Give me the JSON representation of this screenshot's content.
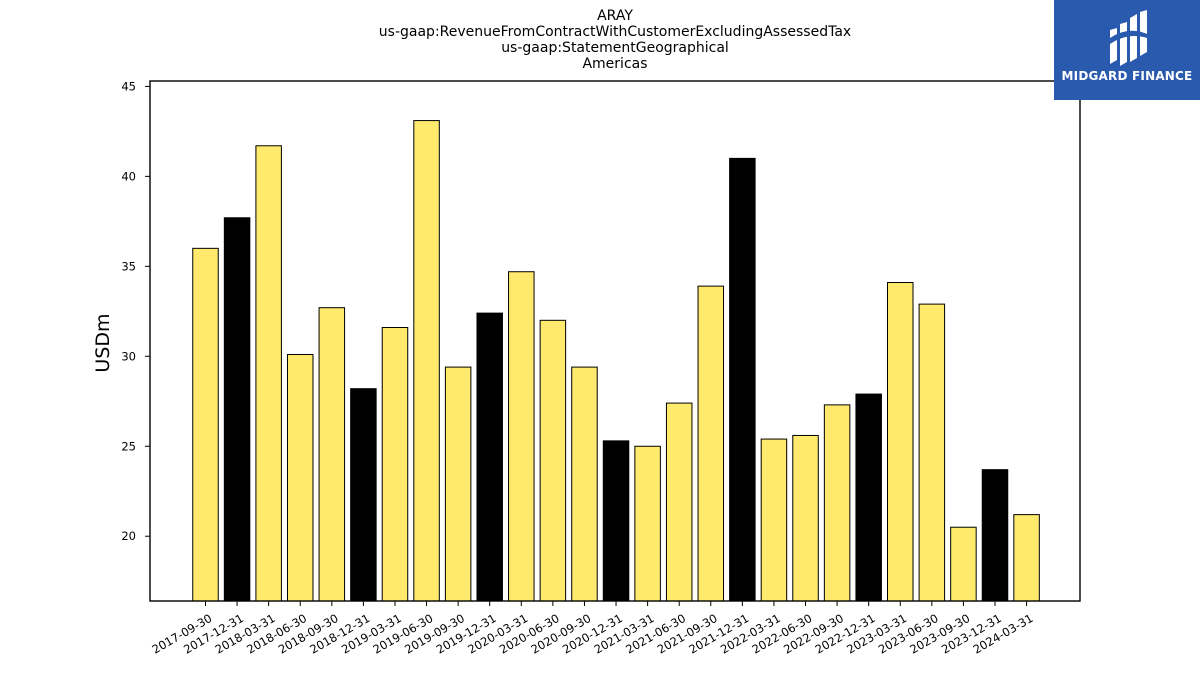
{
  "chart_data": {
    "type": "bar",
    "title_lines": [
      "ARAY",
      "us-gaap:RevenueFromContractWithCustomerExcludingAssessedTax",
      "us-gaap:StatementGeographical",
      "Americas"
    ],
    "xlabel": "",
    "ylabel": "USDm",
    "ylim": [
      16.4,
      45.3
    ],
    "yticks": [
      20,
      25,
      30,
      35,
      40,
      45
    ],
    "grid": false,
    "categories": [
      "2017-09-30",
      "2017-12-31",
      "2018-03-31",
      "2018-06-30",
      "2018-09-30",
      "2018-12-31",
      "2019-03-31",
      "2019-06-30",
      "2019-09-30",
      "2019-12-31",
      "2020-03-31",
      "2020-06-30",
      "2020-09-30",
      "2020-12-31",
      "2021-03-31",
      "2021-06-30",
      "2021-09-30",
      "2021-12-31",
      "2022-03-31",
      "2022-06-30",
      "2022-09-30",
      "2022-12-31",
      "2023-03-31",
      "2023-06-30",
      "2023-09-30",
      "2023-12-31",
      "2024-03-31"
    ],
    "values": [
      36.0,
      37.7,
      41.7,
      30.1,
      32.7,
      28.2,
      31.6,
      43.1,
      29.4,
      32.4,
      34.7,
      32.0,
      29.4,
      25.3,
      25.0,
      27.4,
      33.9,
      41.0,
      25.4,
      25.6,
      27.3,
      27.9,
      34.1,
      32.9,
      20.5,
      23.7,
      21.2
    ],
    "bar_colors": [
      "#ffea6e",
      "#000000",
      "#ffea6e",
      "#ffea6e",
      "#ffea6e",
      "#000000",
      "#ffea6e",
      "#ffea6e",
      "#ffea6e",
      "#000000",
      "#ffea6e",
      "#ffea6e",
      "#ffea6e",
      "#000000",
      "#ffea6e",
      "#ffea6e",
      "#ffea6e",
      "#000000",
      "#ffea6e",
      "#ffea6e",
      "#ffea6e",
      "#000000",
      "#ffea6e",
      "#ffea6e",
      "#ffea6e",
      "#000000",
      "#ffea6e"
    ]
  },
  "logo": {
    "name": "MIDGARD FINANCE",
    "background": "#2a5aae",
    "icon": "midgard-logo-icon"
  }
}
